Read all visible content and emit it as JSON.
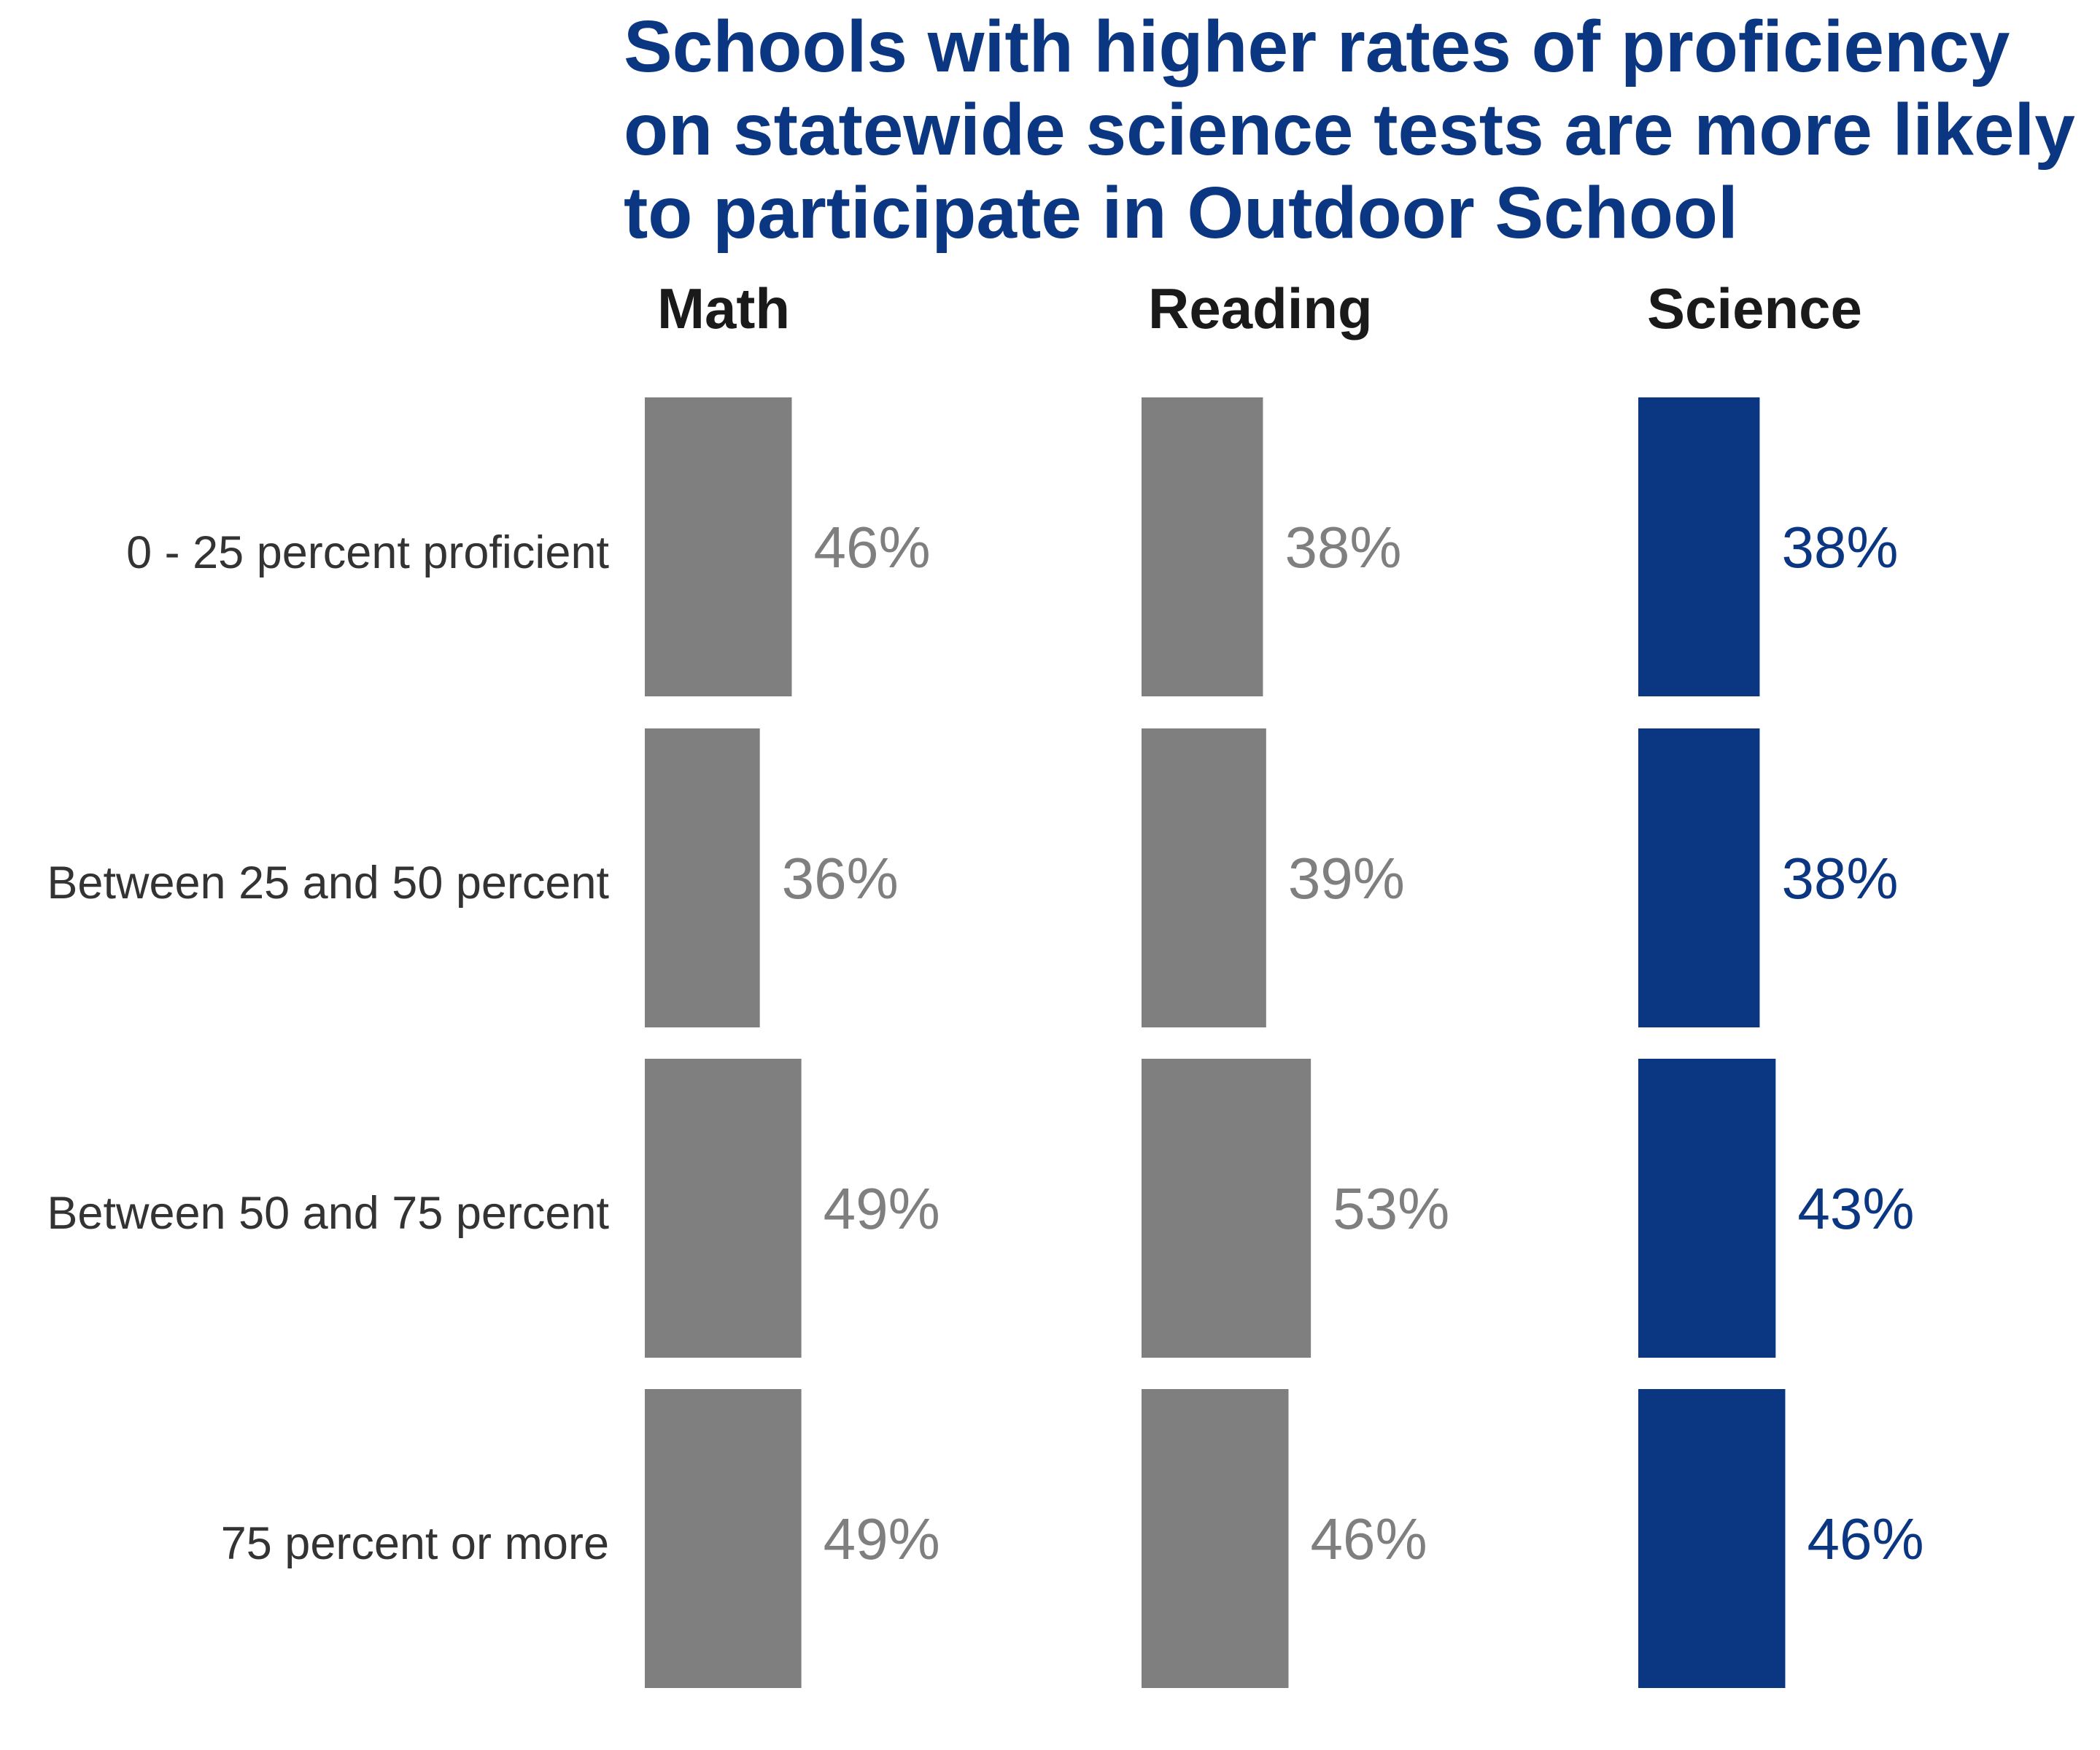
{
  "colors": {
    "title": "#0a3682",
    "panel_title": "#1a1a1a",
    "category_label": "#333333",
    "muted_bar": "#7f7f7f",
    "muted_label": "#7f7f7f",
    "accent_bar": "#0a3682",
    "accent_label": "#0a3682",
    "background": "#ffffff"
  },
  "chart_data": {
    "type": "bar",
    "orientation": "horizontal",
    "title": "Schools with higher rates of proficiency on statewide science tests are more likely to participate in Outdoor School",
    "title_lines": [
      "Schools with higher rates of proficiency",
      "on statewide science tests are more likely",
      "to participate in Outdoor School"
    ],
    "categories": [
      "0 - 25 percent proficient",
      "Between 25 and 50 percent",
      "Between 50 and 75 percent",
      "75 percent or more"
    ],
    "panels": [
      {
        "name": "Math",
        "highlight": false,
        "values": [
          46,
          36,
          49,
          49
        ],
        "labels": [
          "46%",
          "36%",
          "49%",
          "49%"
        ]
      },
      {
        "name": "Reading",
        "highlight": false,
        "values": [
          38,
          39,
          53,
          46
        ],
        "labels": [
          "38%",
          "39%",
          "53%",
          "46%"
        ]
      },
      {
        "name": "Science",
        "highlight": true,
        "values": [
          38,
          38,
          43,
          46
        ],
        "labels": [
          "38%",
          "38%",
          "43%",
          "46%"
        ]
      }
    ],
    "value_unit": "%",
    "xlabel": "",
    "ylabel": "",
    "grid": false,
    "legend": "none"
  }
}
